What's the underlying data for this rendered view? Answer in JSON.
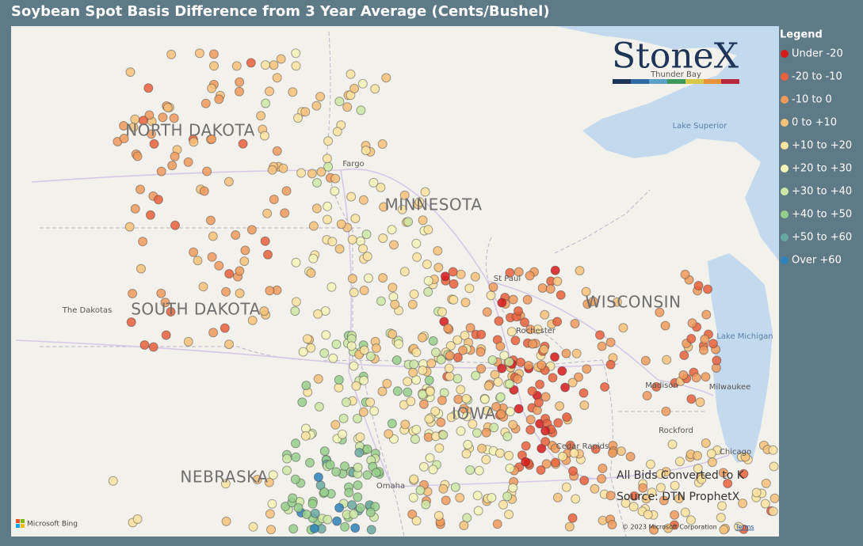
{
  "title": "Soybean Spot Basis Difference from 3 Year Average (Cents/Bushel)",
  "legend": {
    "title": "Legend",
    "items": [
      {
        "label": "Under -20",
        "color": "#d7191c"
      },
      {
        "label": "-20 to -10",
        "color": "#e8603c"
      },
      {
        "label": "-10 to 0",
        "color": "#f09a5c"
      },
      {
        "label": "0 to +10",
        "color": "#f6c27a"
      },
      {
        "label": "+10 to +20",
        "color": "#fde3a0"
      },
      {
        "label": "+20 to +30",
        "color": "#f3f5b8"
      },
      {
        "label": "+30 to +40",
        "color": "#cde8a5"
      },
      {
        "label": "+40 to +50",
        "color": "#96cf8c"
      },
      {
        "label": "+50 to +60",
        "color": "#6aa8a2"
      },
      {
        "label": "Over +60",
        "color": "#2b83ba"
      }
    ]
  },
  "logo": "StoneX",
  "map_labels": {
    "states": [
      "NORTH DAKOTA",
      "MINNESOTA",
      "SOUTH DAKOTA",
      "WISCONSIN",
      "NEBRASKA",
      "IOWA"
    ],
    "places": [
      "Thunder Bay",
      "Lake Superior",
      "Fargo",
      "St Paul",
      "The Dakotas",
      "Rochester",
      "Lake Michigan",
      "Madison",
      "Milwaukee",
      "Rockford",
      "Chicago",
      "Cedar Rapids",
      "Omaha"
    ]
  },
  "notes": [
    "All Bids Converted to K",
    "Source: DTN ProphetX"
  ],
  "attribution": {
    "provider": "Microsoft Bing",
    "copyright": "© 2023 Microsoft Corporation",
    "terms": "Terms"
  }
}
